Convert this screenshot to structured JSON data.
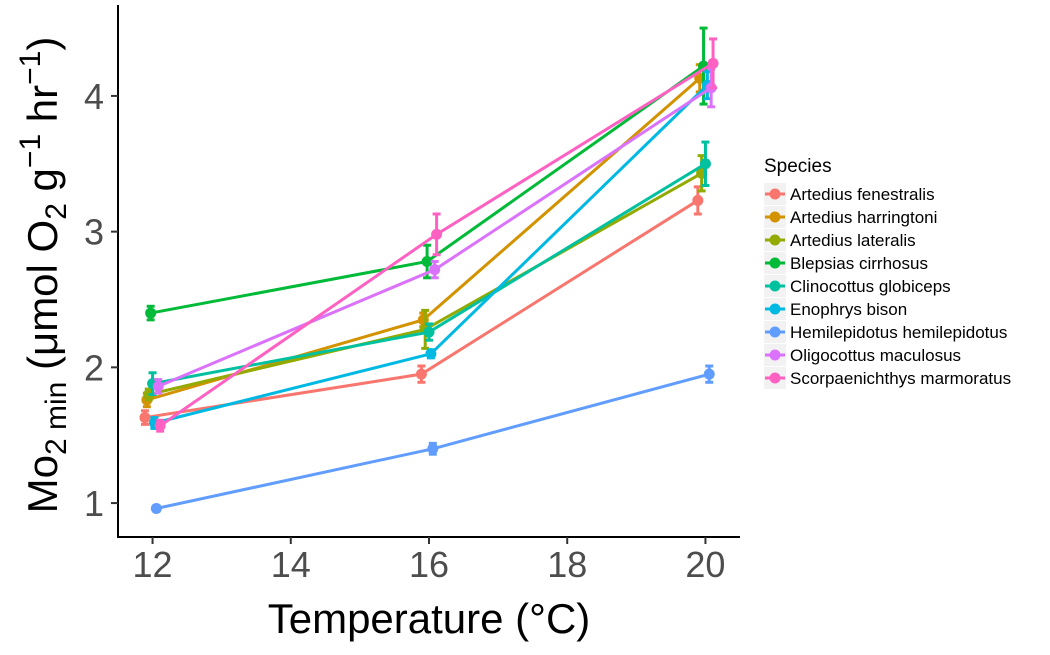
{
  "chart_data": {
    "type": "line",
    "x": [
      12,
      16,
      20
    ],
    "xlim": [
      11.5,
      20.5
    ],
    "ylim": [
      0.75,
      4.67
    ],
    "x_ticks": [
      "12",
      "14",
      "16",
      "18",
      "20"
    ],
    "y_ticks": [
      "1",
      "2",
      "3",
      "4"
    ],
    "xlabel": "Temperature (°C)",
    "ylabel": {
      "base": "Mo",
      "sub": "2 min",
      "text1": " (μmol O",
      "sub2": "2",
      "text2": " g",
      "sup1": "−1",
      "text3": " hr",
      "sup2": "−1",
      "text4": ")"
    },
    "legend_title": "Species",
    "legend_position": "right",
    "grid": false,
    "series": [
      {
        "name": "Artedius fenestralis",
        "color": "#F8766D",
        "values": [
          1.63,
          1.95,
          3.23
        ],
        "errors": [
          0.05,
          0.06,
          0.1
        ]
      },
      {
        "name": "Artedius harringtoni",
        "color": "#D39200",
        "values": [
          1.76,
          2.35,
          4.13
        ],
        "errors": [
          0.05,
          0.05,
          0.1
        ]
      },
      {
        "name": "Artedius lateralis",
        "color": "#93AA00",
        "values": [
          1.8,
          2.28,
          3.43
        ],
        "errors": [
          0.04,
          0.14,
          0.13
        ]
      },
      {
        "name": "Blepsias cirrhosus",
        "color": "#00BA38",
        "values": [
          2.4,
          2.78,
          4.22
        ],
        "errors": [
          0.05,
          0.12,
          0.28
        ]
      },
      {
        "name": "Clinocottus globiceps",
        "color": "#00C19F",
        "values": [
          1.88,
          2.26,
          3.5
        ],
        "errors": [
          0.08,
          0.06,
          0.16
        ]
      },
      {
        "name": "Enophrys bison",
        "color": "#00B9E3",
        "values": [
          1.59,
          2.1,
          4.08
        ],
        "errors": [
          0.04,
          0.03,
          0.1
        ]
      },
      {
        "name": "Hemilepidotus hemilepidotus",
        "color": "#619CFF",
        "values": [
          0.96,
          1.4,
          1.95
        ],
        "errors": [
          0.02,
          0.04,
          0.06
        ]
      },
      {
        "name": "Oligocottus maculosus",
        "color": "#DB72FB",
        "values": [
          1.86,
          2.72,
          4.06
        ],
        "errors": [
          0.05,
          0.06,
          0.14
        ]
      },
      {
        "name": "Scorpaenichthys marmoratus",
        "color": "#FF61C3",
        "values": [
          1.57,
          2.98,
          4.24
        ],
        "errors": [
          0.04,
          0.15,
          0.18
        ]
      }
    ]
  }
}
